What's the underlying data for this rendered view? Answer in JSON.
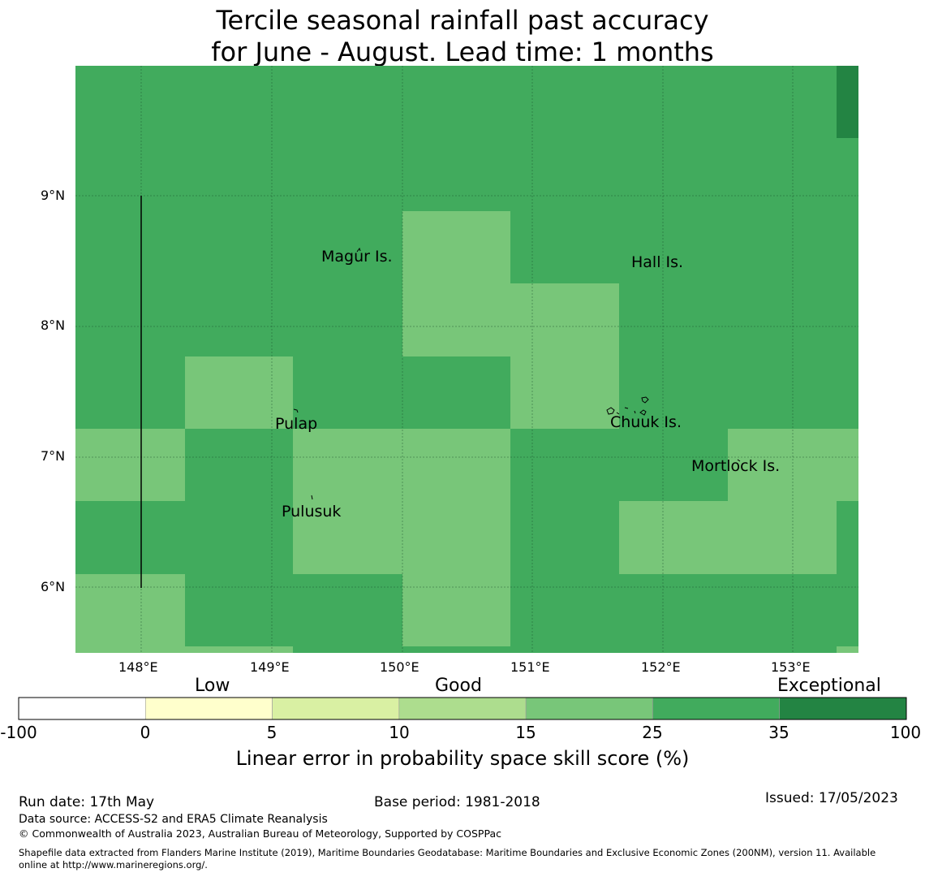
{
  "title": {
    "line1": "Tercile seasonal rainfall past accuracy",
    "line2": "for June - August. Lead time: 1 months"
  },
  "map": {
    "lon_ticks": [
      "148°E",
      "149°E",
      "150°E",
      "151°E",
      "152°E",
      "153°E"
    ],
    "lat_ticks": [
      "9°N",
      "8°N",
      "7°N",
      "6°N"
    ],
    "extent": {
      "lon_min": 147.5,
      "lon_max": 153.5,
      "lat_min": 5.5,
      "lat_max": 10.0
    },
    "colors": {
      "good": "#78c679",
      "very_good": "#41ab5d",
      "exceptional": "#238443"
    },
    "places": [
      "Magur Is.",
      "Hall Is.",
      "Pulap",
      "Chuuk Is.",
      "Mortlock Is.",
      "Pulusuk"
    ]
  },
  "colorbar": {
    "categories": [
      "Low",
      "Good",
      "Exceptional"
    ],
    "ticks": [
      "-100",
      "0",
      "5",
      "10",
      "15",
      "25",
      "35",
      "100"
    ],
    "colors": [
      "#ffffff",
      "#ffffcc",
      "#d9f0a3",
      "#addd8e",
      "#78c679",
      "#41ab5d",
      "#238443"
    ],
    "label": "Linear error in probability space skill score (%)"
  },
  "footer": {
    "run_date": "Run date: 17th May",
    "base_period": "Base period: 1981-2018",
    "issued": "Issued: 17/05/2023",
    "data_source": "Data source: ACCESS-S2 and ERA5 Climate Reanalysis",
    "copyright": "© Commonwealth of Australia 2023, Australian Bureau of Meteorology, Supported by COSPPac",
    "shapefile1": "Shapefile data extracted from Flanders Marine Institute (2019), Maritime Boundaries Geodatabase: Maritime Boundaries and Exclusive Economic Zones (200NM), version 11. Available",
    "shapefile2": "online at http://www.marineregions.org/."
  }
}
